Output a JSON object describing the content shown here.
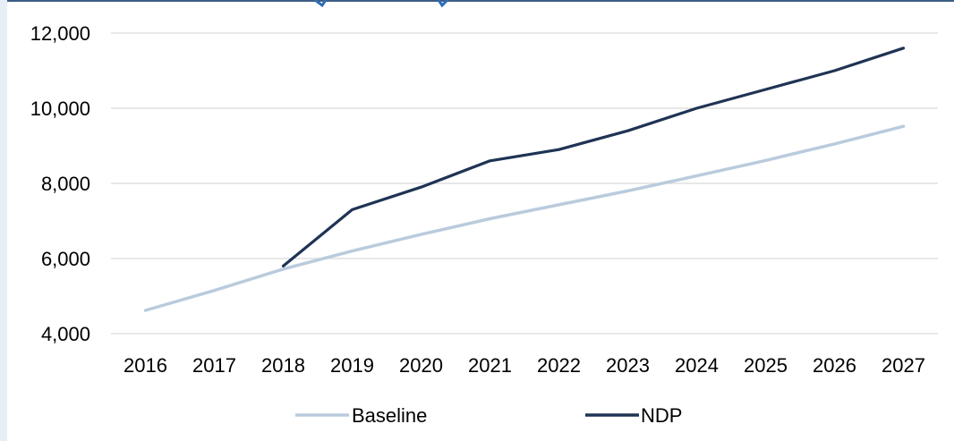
{
  "colors": {
    "baseline": "#B9CBDD",
    "ndp": "#1F3354",
    "grid": "#D9D9D9",
    "frame": "#3D5D85",
    "band": "#E8EEF6",
    "cutoff_title": "#2F6DB5"
  },
  "chart_data": {
    "type": "line",
    "title": "",
    "xlabel": "",
    "ylabel": "",
    "ylim": [
      4000,
      12000
    ],
    "y_ticks": [
      4000,
      6000,
      8000,
      10000,
      12000
    ],
    "y_tick_labels": [
      "4,000",
      "6,000",
      "8,000",
      "10,000",
      "12,000"
    ],
    "grid": true,
    "legend_position": "bottom",
    "categories": [
      "2016",
      "2017",
      "2018",
      "2019",
      "2020",
      "2021",
      "2022",
      "2023",
      "2024",
      "2025",
      "2026",
      "2027"
    ],
    "series": [
      {
        "name": "Baseline",
        "color": "#B9CBDD",
        "values": [
          4620,
          5150,
          5720,
          6200,
          6640,
          7060,
          7430,
          7800,
          8200,
          8610,
          9050,
          9520
        ]
      },
      {
        "name": "NDP",
        "color": "#1F3354",
        "values": [
          null,
          null,
          5800,
          7300,
          7900,
          8600,
          8900,
          9400,
          10000,
          10500,
          11000,
          11600
        ]
      }
    ]
  }
}
